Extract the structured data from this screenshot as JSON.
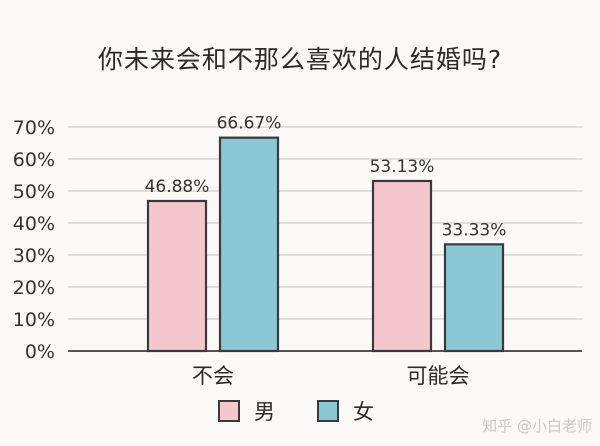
{
  "chart_data": {
    "type": "bar",
    "title": "你未来会和不那么喜欢的人结婚吗?",
    "categories": [
      "不会",
      "可能会"
    ],
    "series": [
      {
        "name": "男",
        "values": [
          46.88,
          53.13
        ],
        "color": "#f4c8cc"
      },
      {
        "name": "女",
        "values": [
          66.67,
          33.33
        ],
        "color": "#8cc7d4"
      }
    ],
    "data_labels": [
      [
        "46.88%",
        "53.13%"
      ],
      [
        "66.67%",
        "33.33%"
      ]
    ],
    "yticks": [
      "0%",
      "10%",
      "20%",
      "30%",
      "40%",
      "50%",
      "60%",
      "70%"
    ],
    "ylim": [
      0,
      70
    ],
    "xlabel": "",
    "ylabel": "",
    "grid": true,
    "legend_position": "bottom"
  },
  "watermark": "知乎 @小白老师"
}
